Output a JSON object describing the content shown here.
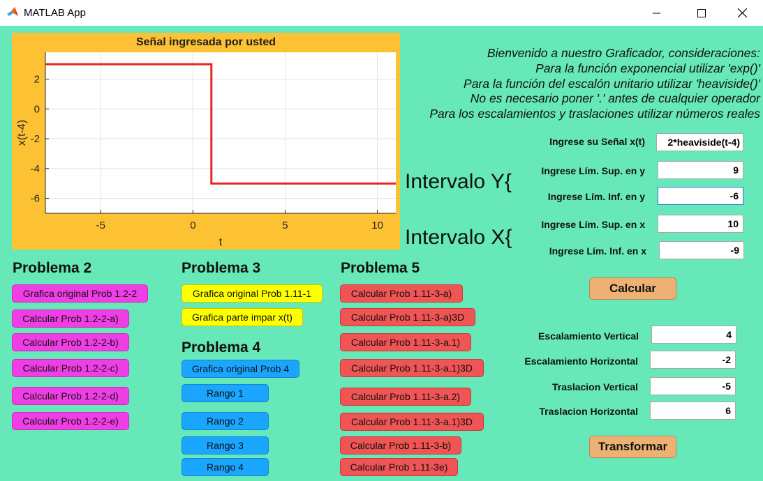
{
  "window": {
    "title": "MATLAB App",
    "icon": "matlab-icon"
  },
  "chart_data": {
    "type": "line",
    "title": "Señal ingresada por usted",
    "xlabel": "t",
    "ylabel": "x(t-4)",
    "xlim": [
      -8,
      11
    ],
    "ylim": [
      -7,
      3.8
    ],
    "xticks": [
      -5,
      0,
      5,
      10
    ],
    "yticks": [
      2,
      0,
      -2,
      -4,
      -6
    ],
    "grid": true,
    "series": [
      {
        "color": "#e8251f",
        "x": [
          -8,
          1,
          1,
          11
        ],
        "y": [
          3,
          3,
          -5,
          -5
        ]
      }
    ]
  },
  "info": {
    "line1": "Bienvenido a nuestro Graficador, consideraciones:",
    "line2": "Para la función exponencial utilizar 'exp()'",
    "line3": "Para la función del escalón unitario utilizar 'heaviside()'",
    "line4": "No es necesario poner '.' antes de cualquier operador",
    "line5": "Para los escalamientos y traslaciones utilizar números reales"
  },
  "form": {
    "signal_label": "Ingrese su Señal x(t)",
    "signal_value": "2*heaviside(t-4)",
    "ysup_label": "Ingrese Lím. Sup. en y",
    "ysup_value": "9",
    "yinf_label": "Ingrese Lím. Inf. en y",
    "yinf_value": "-6",
    "xsup_label": "Ingrese Lím. Sup. en x",
    "xsup_value": "10",
    "xinf_label": "Ingrese Lím. Inf. en x",
    "xinf_value": "-9",
    "interval_y": "Intervalo Y{",
    "interval_x": "Intervalo X{",
    "calc_button": "Calcular"
  },
  "transform": {
    "esc_v_label": "Escalamiento Vertical",
    "esc_v_value": "4",
    "esc_h_label": "Escalamiento Horizontal",
    "esc_h_value": "-2",
    "tras_v_label": "Traslacion Vertical",
    "tras_v_value": "-5",
    "tras_h_label": "Traslacion Horizontal",
    "tras_h_value": "6",
    "button": "Transformar"
  },
  "problema2": {
    "title": "Problema 2",
    "buttons": [
      "Grafica original Prob 1.2-2",
      "Calcular Prob 1.2-2-a)",
      "Calcular Prob 1.2-2-b)",
      "Calcular Prob 1.2-2-c)",
      "Calcular Prob 1.2-2-d)",
      "Calcular Prob 1.2-2-e)"
    ]
  },
  "problema3": {
    "title": "Problema 3",
    "buttons": [
      "Grafica original Prob 1.11-1",
      "Grafica parte impar x(t)"
    ]
  },
  "problema4": {
    "title": "Problema 4",
    "buttons": [
      "Grafica original Prob 4",
      "Rango 1",
      "Rango 2",
      "Rango 3",
      "Rango 4"
    ]
  },
  "problema5": {
    "title": "Problema 5",
    "buttons": [
      "Calcular Prob 1.11-3-a)",
      "Calcular Prob 1.11-3-a)3D",
      "Calcular Prob 1.11-3-a.1)",
      "Calcular Prob 1.11-3-a.1)3D",
      "Calcular Prob 1.11-3-a.2)",
      "Calcular Prob 1.11-3-a.1)3D",
      "Calcular Prob 1.11-3-b)",
      "Calcular Prob 1.11-3e)"
    ]
  }
}
